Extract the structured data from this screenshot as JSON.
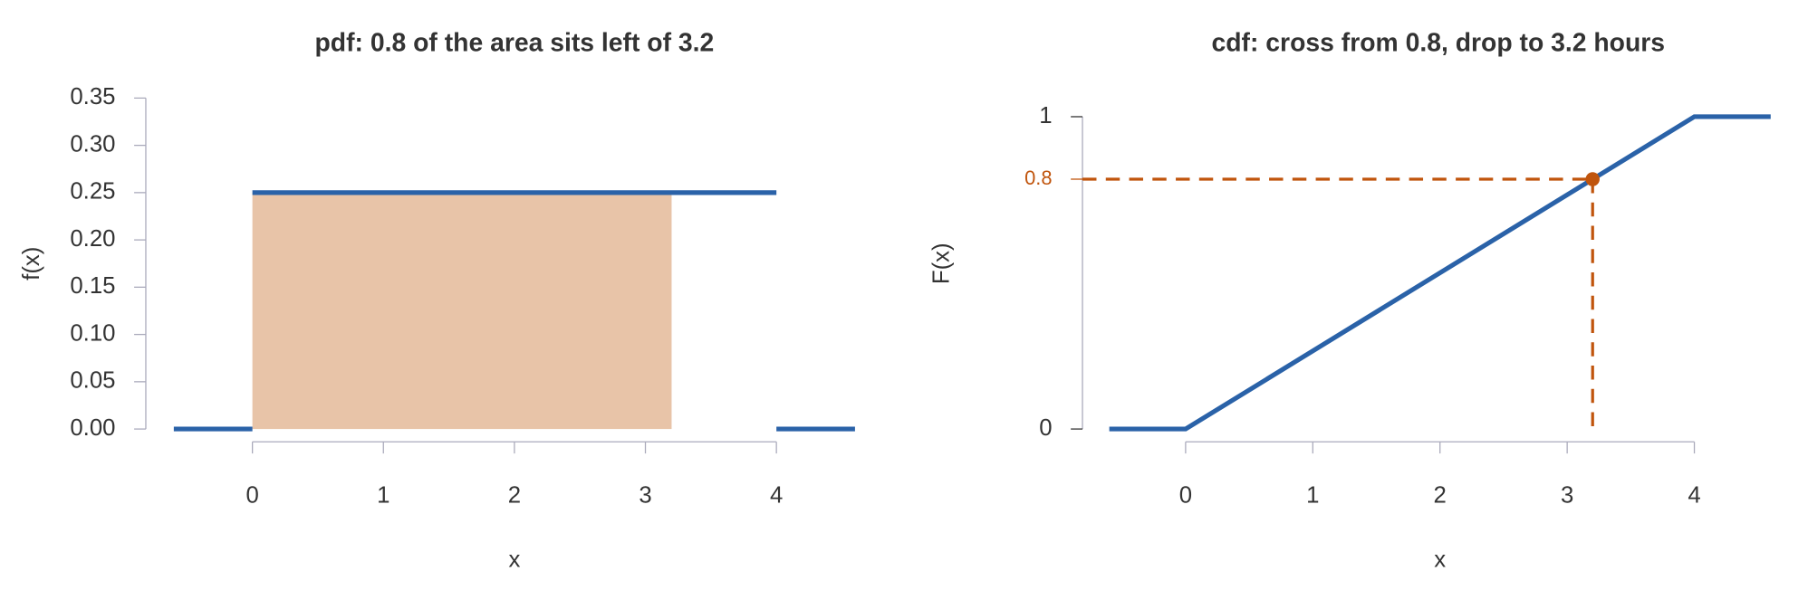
{
  "chart_data": [
    {
      "type": "line",
      "title": "pdf: 0.8 of the area sits left of 3.2",
      "xlabel": "x",
      "ylabel": "f(x)",
      "series": [
        {
          "color": "#2a62a8",
          "x": [
            -0.6,
            0
          ],
          "values": [
            0,
            0
          ]
        },
        {
          "color": "#2a62a8",
          "x": [
            0,
            4
          ],
          "values": [
            0.25,
            0.25
          ]
        },
        {
          "color": "#2a62a8",
          "x": [
            4,
            4.6
          ],
          "values": [
            0,
            0
          ]
        }
      ],
      "shade": {
        "x": [
          0,
          3.2
        ],
        "value": 0.25,
        "color": "#e8c4a8"
      },
      "xlim": [
        -0.6,
        4.6
      ],
      "xticks": [
        0,
        1,
        2,
        3,
        4
      ],
      "ylim": [
        0,
        0.35
      ],
      "yticks": [
        {
          "value": 0,
          "label": "0.00"
        },
        {
          "value": 0.05,
          "label": "0.05"
        },
        {
          "value": 0.1,
          "label": "0.10"
        },
        {
          "value": 0.15,
          "label": "0.15"
        },
        {
          "value": 0.2,
          "label": "0.20"
        },
        {
          "value": 0.25,
          "label": "0.25"
        },
        {
          "value": 0.3,
          "label": "0.30"
        },
        {
          "value": 0.35,
          "label": "0.35"
        }
      ]
    },
    {
      "type": "line",
      "title": "cdf: cross from 0.8, drop to 3.2 hours",
      "xlabel": "x",
      "ylabel": "F(x)",
      "series": [
        {
          "color": "#2a62a8",
          "x": [
            -0.6,
            0,
            4,
            4.6
          ],
          "values": [
            0,
            0,
            1,
            1
          ]
        }
      ],
      "points": {
        "x": [
          3.2
        ],
        "values": [
          0.8
        ],
        "color": "#c0540c"
      },
      "xlim": [
        -0.6,
        4.6
      ],
      "xticks": [
        0,
        1,
        2,
        3,
        4
      ],
      "ylim": [
        0,
        1
      ],
      "yticks": [
        0,
        0.8,
        1
      ],
      "ytick_colors": [
        "#333333",
        "#c0540c",
        "#333333"
      ]
    }
  ]
}
